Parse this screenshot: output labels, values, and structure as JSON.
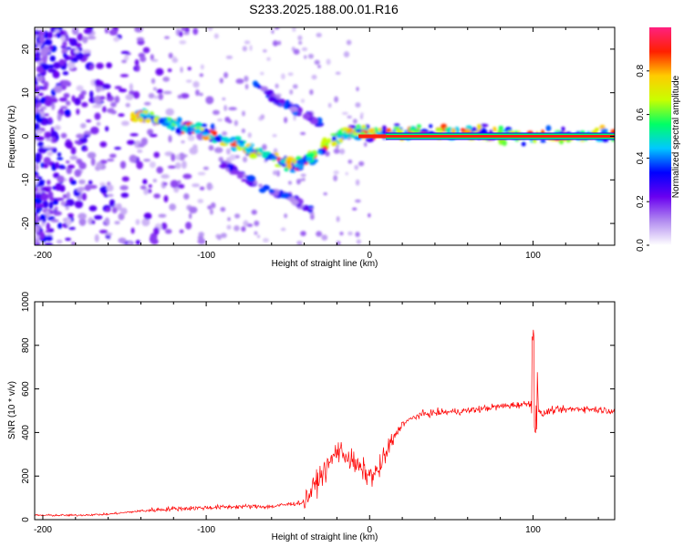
{
  "title": "S233.2025.188.00.01.R16",
  "chart_data": [
    {
      "type": "heatmap",
      "xlabel": "Height of straight line (km)",
      "ylabel": "Frequency (Hz)",
      "xlim": [
        -205,
        150
      ],
      "ylim": [
        -25,
        25
      ],
      "x_ticks": [
        -200,
        -100,
        0,
        100
      ],
      "x_tick_labels": [
        "-200",
        "-100",
        "0",
        "100"
      ],
      "y_ticks": [
        -20,
        -10,
        0,
        10,
        20
      ],
      "y_tick_labels": [
        "-20",
        "-10",
        "0",
        "10",
        "20"
      ],
      "colorbar": {
        "label": "Normalized spectral amplitude",
        "range": [
          0,
          1
        ],
        "ticks": [
          0.0,
          0.2,
          0.4,
          0.6,
          0.8
        ],
        "tick_labels": [
          "0.0",
          "0.2",
          "0.4",
          "0.6",
          "0.8"
        ],
        "colors": [
          "#ffffff",
          "#b28cf0",
          "#6a00f0",
          "#0000ff",
          "#00c8ff",
          "#00ff66",
          "#c8ff00",
          "#ffcc00",
          "#ff2000",
          "#ff2080"
        ]
      },
      "features": [
        {
          "name": "main trace",
          "points": [
            [
              -145,
              5
            ],
            [
              -120,
              3
            ],
            [
              -100,
              1
            ],
            [
              -80,
              -2
            ],
            [
              -60,
              -5
            ],
            [
              -45,
              -7
            ],
            [
              -35,
              -5
            ],
            [
              -20,
              0
            ],
            [
              -10,
              1
            ],
            [
              0,
              1
            ],
            [
              10,
              1
            ],
            [
              150,
              0
            ]
          ],
          "peak_amplitude": 0.9
        },
        {
          "name": "upper branch",
          "points": [
            [
              -70,
              12
            ],
            [
              -55,
              8
            ],
            [
              -40,
              5
            ],
            [
              -30,
              3
            ]
          ],
          "peak_amplitude": 0.4
        },
        {
          "name": "lower branch",
          "points": [
            [
              -90,
              -6
            ],
            [
              -70,
              -11
            ],
            [
              -50,
              -14
            ],
            [
              -35,
              -17
            ]
          ],
          "peak_amplitude": 0.4
        },
        {
          "name": "flat line",
          "points": [
            [
              10,
              0
            ],
            [
              150,
              0
            ]
          ],
          "peak_amplitude": 1.0
        }
      ]
    },
    {
      "type": "line",
      "xlabel": "Height of straight line (km)",
      "ylabel": "SNR (10 * v/v)",
      "xlim": [
        -205,
        150
      ],
      "ylim": [
        0,
        1000
      ],
      "x_ticks": [
        -200,
        -100,
        0,
        100
      ],
      "x_tick_labels": [
        "-200",
        "-100",
        "0",
        "100"
      ],
      "y_ticks": [
        0,
        200,
        400,
        600,
        800,
        1000
      ],
      "y_tick_labels": [
        "0",
        "200",
        "400",
        "600",
        "800",
        "1000"
      ],
      "color": "#ff0000",
      "series": [
        {
          "x": [
            -205,
            -180,
            -160,
            -140,
            -120,
            -100,
            -80,
            -60,
            -40,
            -30,
            -25,
            -20,
            -15,
            -10,
            -5,
            0,
            5,
            10,
            15,
            20,
            30,
            40,
            60,
            80,
            95,
            100,
            102,
            105,
            110,
            130,
            150
          ],
          "values": [
            20,
            20,
            25,
            40,
            50,
            55,
            60,
            60,
            80,
            200,
            250,
            320,
            300,
            260,
            230,
            200,
            220,
            300,
            380,
            440,
            480,
            490,
            500,
            520,
            530,
            540,
            520,
            480,
            500,
            510,
            500
          ]
        }
      ]
    }
  ]
}
